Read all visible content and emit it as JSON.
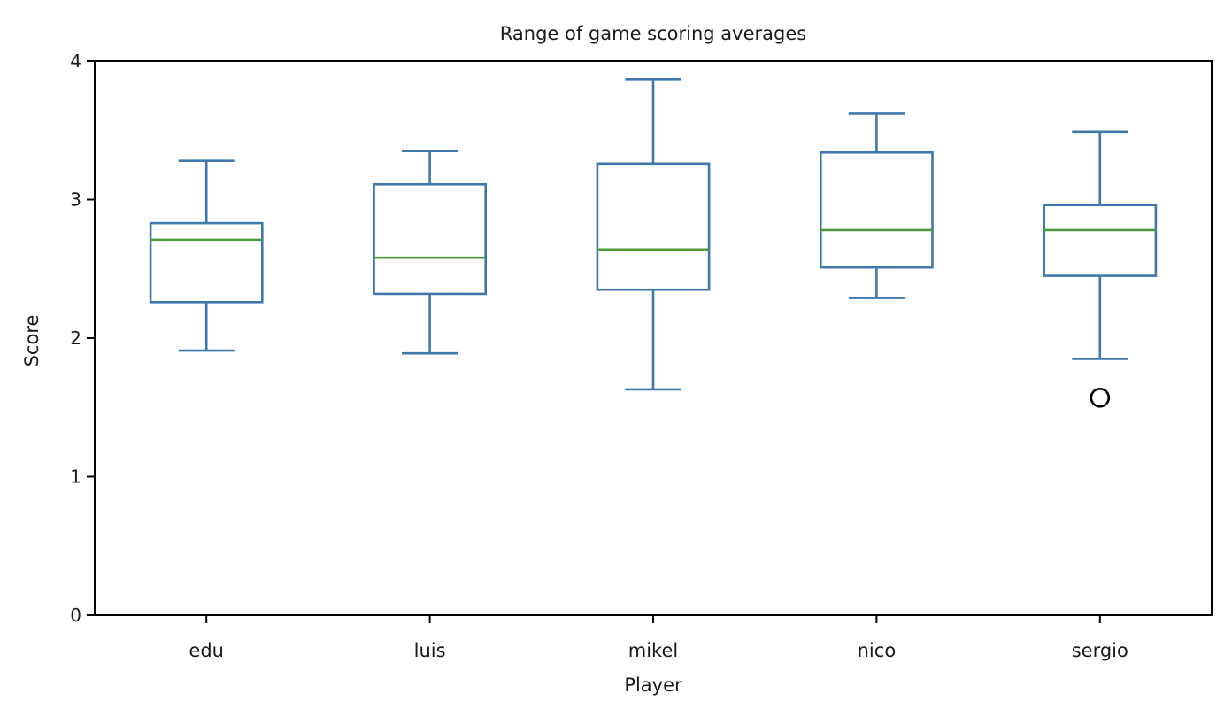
{
  "chart_data": {
    "type": "box",
    "title": "Range of game scoring averages",
    "xlabel": "Player",
    "ylabel": "Score",
    "ylim": [
      0,
      4
    ],
    "yticks": [
      0,
      1,
      2,
      3,
      4
    ],
    "categories": [
      "edu",
      "luis",
      "mikel",
      "nico",
      "sergio"
    ],
    "boxes": [
      {
        "name": "edu",
        "whisker_low": 1.91,
        "q1": 2.26,
        "median": 2.71,
        "q3": 2.83,
        "whisker_high": 3.28,
        "outliers": []
      },
      {
        "name": "luis",
        "whisker_low": 1.89,
        "q1": 2.32,
        "median": 2.58,
        "q3": 3.11,
        "whisker_high": 3.35,
        "outliers": []
      },
      {
        "name": "mikel",
        "whisker_low": 1.63,
        "q1": 2.35,
        "median": 2.64,
        "q3": 3.26,
        "whisker_high": 3.87,
        "outliers": []
      },
      {
        "name": "nico",
        "whisker_low": 2.29,
        "q1": 2.51,
        "median": 2.78,
        "q3": 3.34,
        "whisker_high": 3.62,
        "outliers": []
      },
      {
        "name": "sergio",
        "whisker_low": 1.85,
        "q1": 2.45,
        "median": 2.78,
        "q3": 2.96,
        "whisker_high": 3.49,
        "outliers": [
          1.57
        ]
      }
    ],
    "colors": {
      "box": "#3f78ae",
      "median": "#4e9a3a",
      "outlier": "#000000",
      "axis": "#000000"
    },
    "grid": false,
    "legend": "none"
  }
}
